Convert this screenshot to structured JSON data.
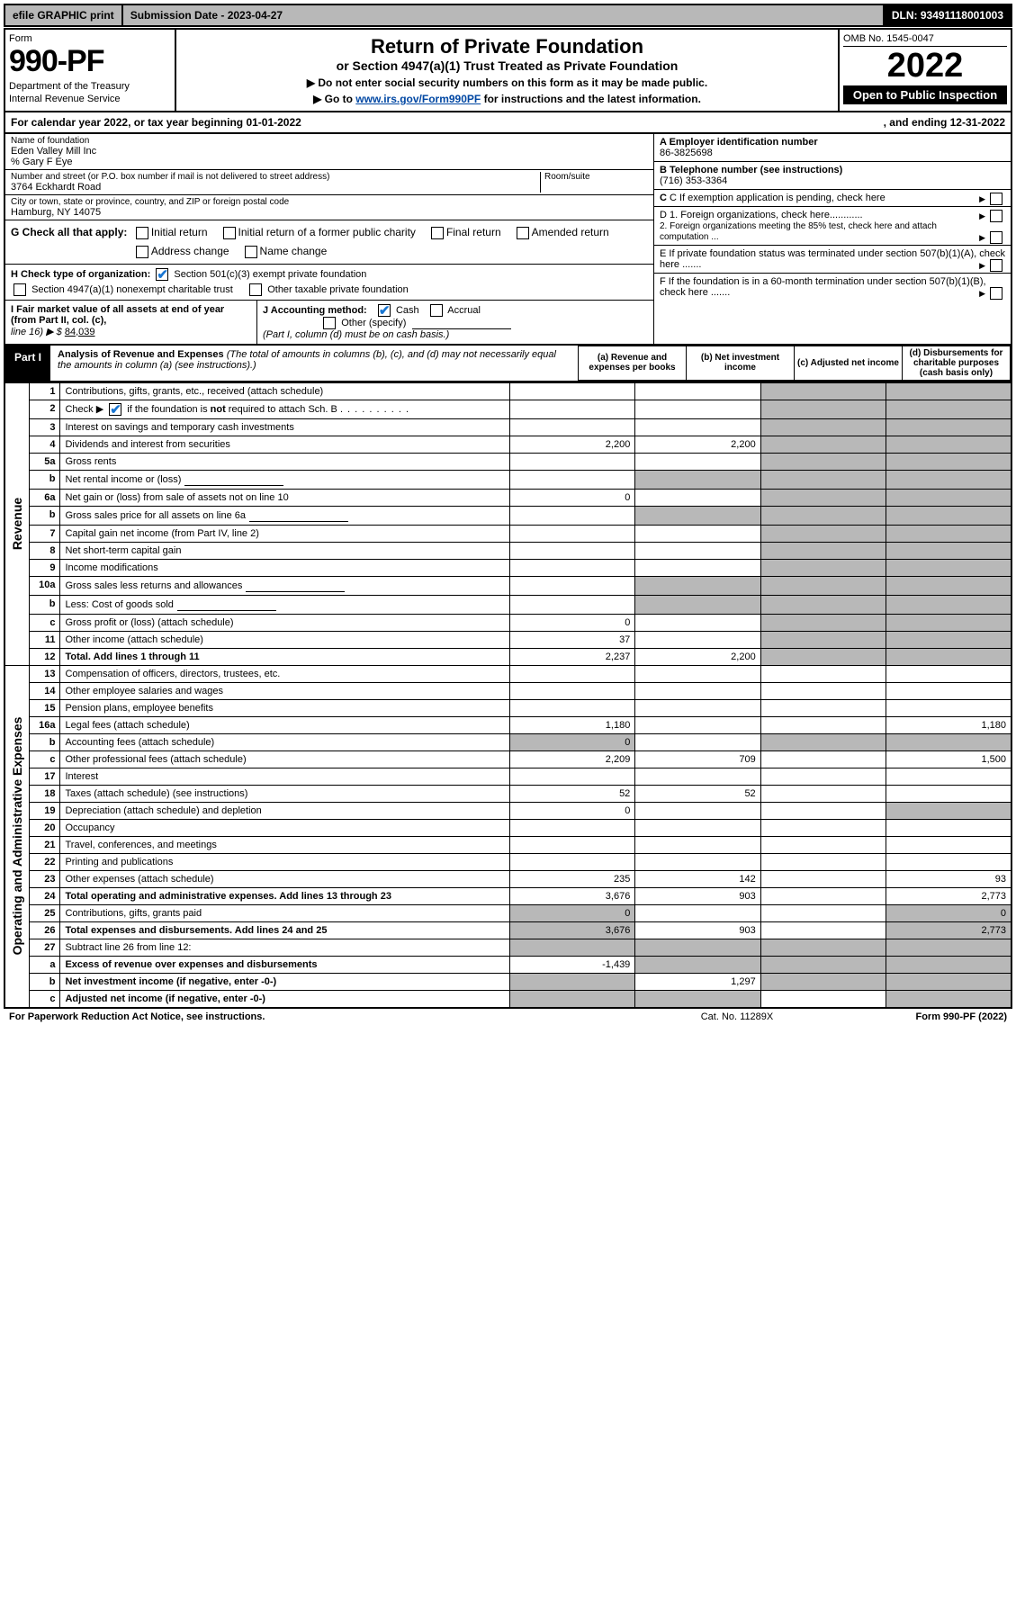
{
  "topbar": {
    "efile": "efile GRAPHIC print",
    "subdate": "Submission Date - 2023-04-27",
    "dln": "DLN: 93491118001003"
  },
  "header": {
    "form_label": "Form",
    "form_number": "990-PF",
    "dept": "Department of the Treasury",
    "irs": "Internal Revenue Service",
    "title": "Return of Private Foundation",
    "subtitle": "or Section 4947(a)(1) Trust Treated as Private Foundation",
    "instruct1": "▶ Do not enter social security numbers on this form as it may be made public.",
    "instruct2_pre": "▶ Go to ",
    "instruct2_link": "www.irs.gov/Form990PF",
    "instruct2_post": " for instructions and the latest information.",
    "omb": "OMB No. 1545-0047",
    "year": "2022",
    "open": "Open to Public Inspection"
  },
  "calendar": {
    "text": "For calendar year 2022, or tax year beginning 01-01-2022",
    "ending": ", and ending 12-31-2022"
  },
  "foundation": {
    "name_label": "Name of foundation",
    "name": "Eden Valley Mill Inc",
    "care_of": "% Gary F Eye",
    "addr_label": "Number and street (or P.O. box number if mail is not delivered to street address)",
    "addr": "3764 Eckhardt Road",
    "room_label": "Room/suite",
    "city_label": "City or town, state or province, country, and ZIP or foreign postal code",
    "city": "Hamburg, NY  14075",
    "ein_label": "A Employer identification number",
    "ein": "86-3825698",
    "phone_label": "B Telephone number (see instructions)",
    "phone": "(716) 353-3364",
    "c_label": "C If exemption application is pending, check here",
    "d1": "D 1. Foreign organizations, check here............",
    "d2": "2. Foreign organizations meeting the 85% test, check here and attach computation ...",
    "e_label": "E  If private foundation status was terminated under section 507(b)(1)(A), check here .......",
    "f_label": "F  If the foundation is in a 60-month termination under section 507(b)(1)(B), check here .......",
    "g_label": "G Check all that apply:",
    "g_opts": [
      "Initial return",
      "Initial return of a former public charity",
      "Final return",
      "Amended return",
      "Address change",
      "Name change"
    ],
    "h_label": "H Check type of organization:",
    "h_opt1": "Section 501(c)(3) exempt private foundation",
    "h_opt2": "Section 4947(a)(1) nonexempt charitable trust",
    "h_opt3": "Other taxable private foundation",
    "i_label": "I Fair market value of all assets at end of year (from Part II, col. (c),",
    "i_line16": "line 16) ▶ $",
    "i_value": "84,039",
    "j_label": "J Accounting method:",
    "j_cash": "Cash",
    "j_accrual": "Accrual",
    "j_other": "Other (specify)",
    "j_note": "(Part I, column (d) must be on cash basis.)"
  },
  "part1": {
    "label": "Part I",
    "title": "Analysis of Revenue and Expenses",
    "note": "(The total of amounts in columns (b), (c), and (d) may not necessarily equal the amounts in column (a) (see instructions).)",
    "col_a": "(a)  Revenue and expenses per books",
    "col_b": "(b)  Net investment income",
    "col_c": "(c)  Adjusted net income",
    "col_d": "(d)  Disbursements for charitable purposes (cash basis only)"
  },
  "sections": {
    "revenue": "Revenue",
    "opex": "Operating and Administrative Expenses"
  },
  "rows": [
    {
      "n": "1",
      "d": "Contributions, gifts, grants, etc., received (attach schedule)"
    },
    {
      "n": "2",
      "d": "Check ▶ ☑ if the foundation is not required to attach Sch. B"
    },
    {
      "n": "3",
      "d": "Interest on savings and temporary cash investments"
    },
    {
      "n": "4",
      "d": "Dividends and interest from securities",
      "a": "2,200",
      "b": "2,200"
    },
    {
      "n": "5a",
      "d": "Gross rents"
    },
    {
      "n": "b",
      "d": "Net rental income or (loss)"
    },
    {
      "n": "6a",
      "d": "Net gain or (loss) from sale of assets not on line 10",
      "a": "0"
    },
    {
      "n": "b",
      "d": "Gross sales price for all assets on line 6a"
    },
    {
      "n": "7",
      "d": "Capital gain net income (from Part IV, line 2)"
    },
    {
      "n": "8",
      "d": "Net short-term capital gain"
    },
    {
      "n": "9",
      "d": "Income modifications"
    },
    {
      "n": "10a",
      "d": "Gross sales less returns and allowances"
    },
    {
      "n": "b",
      "d": "Less: Cost of goods sold"
    },
    {
      "n": "c",
      "d": "Gross profit or (loss) (attach schedule)",
      "a": "0"
    },
    {
      "n": "11",
      "d": "Other income (attach schedule)",
      "a": "37"
    },
    {
      "n": "12",
      "d": "Total. Add lines 1 through 11",
      "a": "2,237",
      "b": "2,200",
      "bold": true
    },
    {
      "n": "13",
      "d": "Compensation of officers, directors, trustees, etc."
    },
    {
      "n": "14",
      "d": "Other employee salaries and wages"
    },
    {
      "n": "15",
      "d": "Pension plans, employee benefits"
    },
    {
      "n": "16a",
      "d": "Legal fees (attach schedule)",
      "a": "1,180",
      "dd": "1,180"
    },
    {
      "n": "b",
      "d": "Accounting fees (attach schedule)",
      "a": "0"
    },
    {
      "n": "c",
      "d": "Other professional fees (attach schedule)",
      "a": "2,209",
      "b": "709",
      "dd": "1,500"
    },
    {
      "n": "17",
      "d": "Interest"
    },
    {
      "n": "18",
      "d": "Taxes (attach schedule) (see instructions)",
      "a": "52",
      "b": "52"
    },
    {
      "n": "19",
      "d": "Depreciation (attach schedule) and depletion",
      "a": "0"
    },
    {
      "n": "20",
      "d": "Occupancy"
    },
    {
      "n": "21",
      "d": "Travel, conferences, and meetings"
    },
    {
      "n": "22",
      "d": "Printing and publications"
    },
    {
      "n": "23",
      "d": "Other expenses (attach schedule)",
      "a": "235",
      "b": "142",
      "dd": "93"
    },
    {
      "n": "24",
      "d": "Total operating and administrative expenses. Add lines 13 through 23",
      "a": "3,676",
      "b": "903",
      "dd": "2,773",
      "bold": true
    },
    {
      "n": "25",
      "d": "Contributions, gifts, grants paid",
      "a": "0",
      "dd": "0"
    },
    {
      "n": "26",
      "d": "Total expenses and disbursements. Add lines 24 and 25",
      "a": "3,676",
      "b": "903",
      "dd": "2,773",
      "bold": true
    },
    {
      "n": "27",
      "d": "Subtract line 26 from line 12:"
    },
    {
      "n": "a",
      "d": "Excess of revenue over expenses and disbursements",
      "a": "-1,439",
      "bold": true
    },
    {
      "n": "b",
      "d": "Net investment income (if negative, enter -0-)",
      "b": "1,297",
      "bold": true
    },
    {
      "n": "c",
      "d": "Adjusted net income (if negative, enter -0-)",
      "bold": true
    }
  ],
  "footer": {
    "left": "For Paperwork Reduction Act Notice, see instructions.",
    "mid": "Cat. No. 11289X",
    "right": "Form 990-PF (2022)"
  },
  "shading": {
    "rev_c_shade": [
      1,
      2,
      3,
      4,
      5,
      6,
      7,
      8,
      9,
      10,
      11,
      12,
      13,
      14,
      15,
      16
    ],
    "rev_d_shade": [
      1,
      2,
      3,
      4,
      5,
      6,
      7,
      8,
      9,
      10,
      11,
      12,
      13,
      14,
      15,
      16
    ]
  }
}
